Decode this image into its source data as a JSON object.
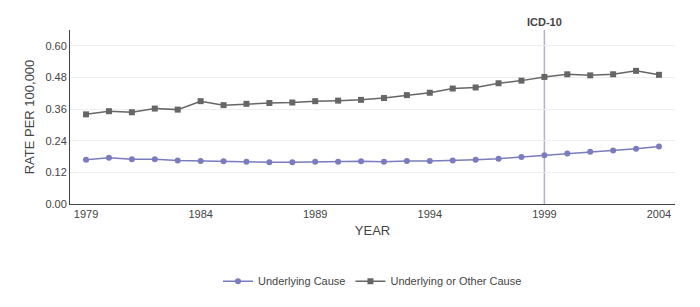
{
  "chart_data": {
    "type": "line",
    "x_label": "YEAR",
    "y_label": "RATE PER 100,000",
    "x": [
      1979,
      1980,
      1981,
      1982,
      1983,
      1984,
      1985,
      1986,
      1987,
      1988,
      1989,
      1990,
      1991,
      1992,
      1993,
      1994,
      1995,
      1996,
      1997,
      1998,
      1999,
      2000,
      2001,
      2002,
      2003,
      2004
    ],
    "series": [
      {
        "name": "Underlying or Other Cause",
        "color": "#666666",
        "marker": "square",
        "line_style": "solid",
        "values": [
          0.34,
          0.352,
          0.348,
          0.362,
          0.358,
          0.39,
          0.375,
          0.38,
          0.383,
          0.385,
          0.39,
          0.392,
          0.395,
          0.402,
          0.413,
          0.422,
          0.438,
          0.442,
          0.458,
          0.468,
          0.482,
          0.492,
          0.488,
          0.492,
          0.505,
          0.49
        ]
      },
      {
        "name": "Underlying Cause",
        "color": "#7b7bbf",
        "marker": "circle",
        "line_style": "solid",
        "values": [
          0.168,
          0.175,
          0.17,
          0.17,
          0.165,
          0.163,
          0.162,
          0.16,
          0.158,
          0.158,
          0.16,
          0.16,
          0.162,
          0.16,
          0.163,
          0.163,
          0.165,
          0.168,
          0.172,
          0.178,
          0.185,
          0.192,
          0.198,
          0.203,
          0.21,
          0.218
        ]
      }
    ],
    "annotations": [
      {
        "text": "ICD-10",
        "x": 1999,
        "color": "#b0b0cc"
      }
    ],
    "xlim": [
      1978.3,
      2004.7
    ],
    "xticks": [
      1979,
      1984,
      1989,
      1994,
      1999,
      2004
    ],
    "ylim": [
      0.0,
      0.66
    ],
    "yticks": [
      {
        "value": 0,
        "label": "0.00"
      },
      0.12,
      0.24,
      0.36,
      0.48,
      {
        "value": 0.6,
        "label": "0.60"
      }
    ],
    "grid": "y",
    "legend": "bottom"
  }
}
